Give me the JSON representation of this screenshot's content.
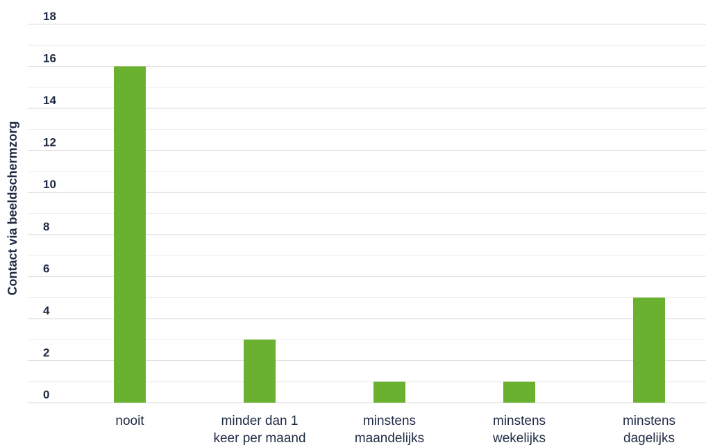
{
  "chart_data": {
    "type": "bar",
    "title": "",
    "xlabel": "",
    "ylabel": "Contact via beeldschermzorg",
    "ylim": [
      0,
      18
    ],
    "yticks": [
      "0",
      "2",
      "4",
      "6",
      "8",
      "10",
      "12",
      "14",
      "16",
      "18"
    ],
    "grid": true,
    "legend": "none",
    "categories": [
      [
        "nooit"
      ],
      [
        "minder dan 1",
        "keer per maand"
      ],
      [
        "minstens",
        "maandelijks"
      ],
      [
        "minstens",
        "wekelijks"
      ],
      [
        "minstens",
        "dagelijks"
      ]
    ],
    "values": [
      16,
      3,
      1,
      1,
      5
    ],
    "colors": {
      "bar": "#6bb130",
      "grid_major": "#d9d9d9",
      "grid_minor": "#eeeeee",
      "text": "#1f2a44"
    }
  }
}
